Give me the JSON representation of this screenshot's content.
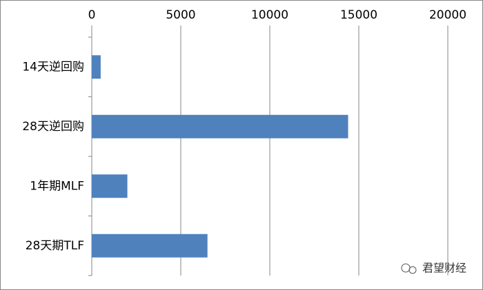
{
  "chart_data": {
    "type": "hbar",
    "categories": [
      "14天逆回购",
      "28天逆回购",
      "1年期MLF",
      "28天期TLF"
    ],
    "values": [
      500,
      14400,
      2000,
      6500
    ],
    "color": "#4f81bd",
    "xlim": [
      0,
      20000
    ],
    "xticks": [
      0,
      5000,
      10000,
      15000,
      20000
    ],
    "grid": true,
    "watermark": "君望财经"
  }
}
